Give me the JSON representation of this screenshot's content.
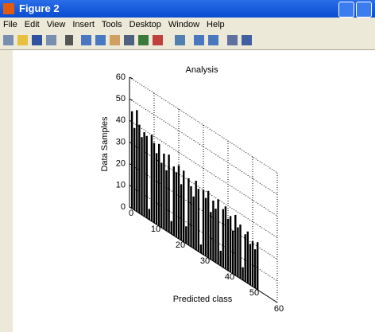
{
  "window": {
    "title": "Figure 2",
    "menu": [
      "File",
      "Edit",
      "View",
      "Insert",
      "Tools",
      "Desktop",
      "Window",
      "Help"
    ]
  },
  "chart_data": {
    "type": "bar",
    "title": "Analysis",
    "x_label": "Predicted class",
    "y_label": "Data Samples",
    "x": [
      1,
      2,
      3,
      4,
      5,
      6,
      7,
      8,
      9,
      10,
      11,
      12,
      13,
      14,
      15,
      16,
      17,
      18,
      19,
      20,
      21,
      22,
      23,
      24,
      25,
      26,
      27,
      28,
      29,
      30,
      31,
      32,
      33,
      34,
      35,
      36,
      37,
      38,
      39,
      40,
      41,
      42,
      43,
      44,
      45,
      46,
      47,
      48,
      49,
      50,
      51,
      52
    ],
    "values": [
      45,
      38,
      47,
      41,
      36,
      39,
      38,
      5,
      40,
      37,
      33,
      38,
      30,
      35,
      28,
      36,
      6,
      32,
      30,
      34,
      26,
      33,
      8,
      31,
      28,
      24,
      32,
      29,
      4,
      30,
      27,
      31,
      22,
      28,
      25,
      30,
      7,
      27,
      29,
      24,
      26,
      20,
      28,
      23,
      25,
      6,
      22,
      24,
      19,
      21,
      18,
      22
    ],
    "color": "#000000",
    "xlim": [
      0,
      60
    ],
    "xticks": [
      0,
      10,
      20,
      30,
      40,
      50,
      60
    ],
    "ylim": [
      0,
      60
    ],
    "yticks": [
      0,
      10,
      20,
      30,
      40,
      50,
      60
    ],
    "grid": true
  }
}
